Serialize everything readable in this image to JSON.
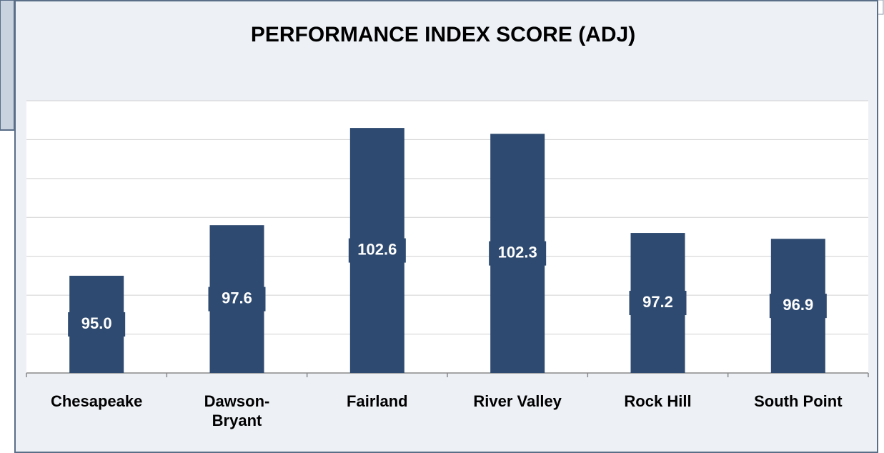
{
  "chart_data": {
    "type": "bar",
    "title": "PERFORMANCE INDEX SCORE (ADJ)",
    "categories": [
      "Chesapeake",
      "Dawson-Bryant",
      "Fairland",
      "River Valley",
      "Rock Hill",
      "South Point"
    ],
    "values": [
      95.0,
      97.6,
      102.6,
      102.3,
      97.2,
      96.9
    ],
    "value_labels": [
      "95.0",
      "97.6",
      "102.6",
      "102.3",
      "97.2",
      "96.9"
    ],
    "color": "#2e4a70",
    "ylim": [
      90,
      104
    ],
    "yticks": [
      90,
      92,
      94,
      96,
      98,
      100,
      102,
      104
    ],
    "grid": true
  }
}
